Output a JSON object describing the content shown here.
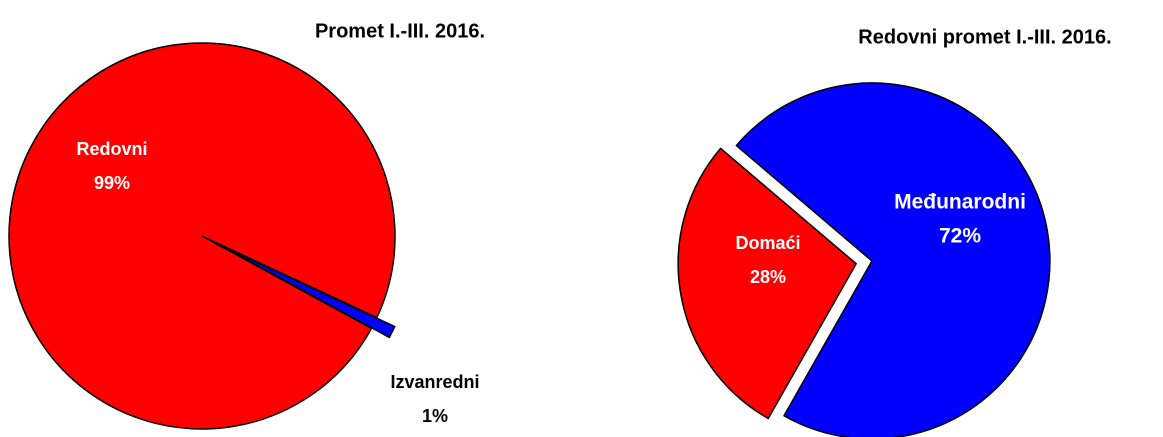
{
  "chart_data": [
    {
      "type": "pie",
      "title": "Promet I.-III. 2016.",
      "categories": [
        "Redovni",
        "Izvanredni"
      ],
      "values": [
        99,
        1
      ],
      "value_labels": [
        "99%",
        "1%"
      ],
      "colors": [
        "#ff0000",
        "#0000ff"
      ]
    },
    {
      "type": "pie",
      "title": "Redovni promet I.-III. 2016.",
      "categories": [
        "Domaći",
        "Međunarodni"
      ],
      "values": [
        28,
        72
      ],
      "value_labels": [
        "28%",
        "72%"
      ],
      "colors": [
        "#ff0000",
        "#0000ff"
      ]
    }
  ]
}
